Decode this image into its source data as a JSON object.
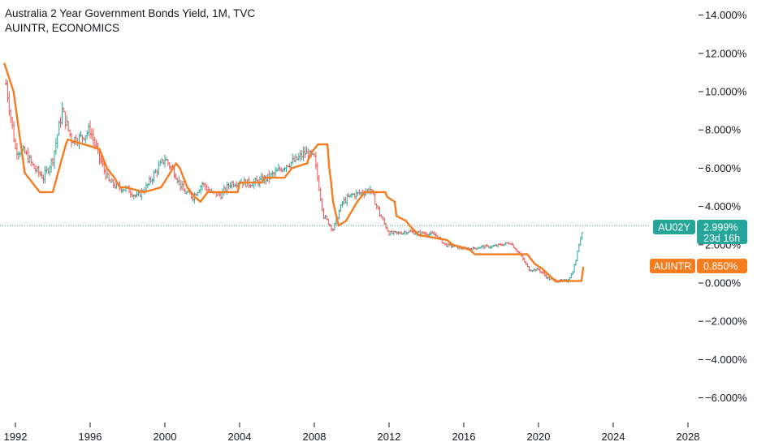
{
  "header": {
    "title": "Australia 2 Year Government Bonds Yield, 1M, TVC",
    "subtitle": "AUINTR, ECONOMICS"
  },
  "colors": {
    "up": "#26a69a",
    "down": "#ef5350",
    "rate_line": "#f57c1f",
    "au02y_badge": "#26a69a",
    "auintr_badge": "#f57c1f",
    "last_price_dotted": "#26a69a"
  },
  "badges": {
    "au02y": {
      "symbol": "AU02Y",
      "value": "2.999%",
      "countdown": "23d 16h"
    },
    "auintr": {
      "symbol": "AUINTR",
      "value": "0.850%"
    }
  },
  "chart_data": {
    "type": "line",
    "x_range": [
      1991.4,
      2028.5
    ],
    "ylim": [
      -7,
      15
    ],
    "y_ticks": [
      "14.000%",
      "12.000%",
      "10.000%",
      "8.000%",
      "6.000%",
      "4.000%",
      "2.000%",
      "0.000%",
      "−2.000%",
      "−4.000%",
      "−6.000%"
    ],
    "y_tick_values": [
      14,
      12,
      10,
      8,
      6,
      4,
      2,
      0,
      -2,
      -4,
      -6
    ],
    "x_ticks": [
      "1992",
      "1996",
      "2000",
      "2004",
      "2008",
      "2012",
      "2016",
      "2020",
      "2024",
      "2028"
    ],
    "x_tick_values": [
      1992,
      1996,
      2000,
      2004,
      2008,
      2012,
      2016,
      2020,
      2024,
      2028
    ],
    "grid": false,
    "series": [
      {
        "name": "AU02Y",
        "style": "ohlc-bars",
        "x": [
          1991.5,
          1992.0,
          1992.5,
          1993.0,
          1993.5,
          1994.0,
          1994.5,
          1995.0,
          1995.5,
          1996.0,
          1996.5,
          1997.0,
          1997.5,
          1998.0,
          1998.5,
          1999.0,
          1999.5,
          2000.0,
          2000.5,
          2001.0,
          2001.5,
          2002.0,
          2002.5,
          2003.0,
          2003.5,
          2004.0,
          2004.5,
          2005.0,
          2005.5,
          2006.0,
          2006.5,
          2007.0,
          2007.5,
          2008.0,
          2008.5,
          2009.0,
          2009.5,
          2010.0,
          2010.5,
          2011.0,
          2011.5,
          2012.0,
          2012.5,
          2013.0,
          2013.5,
          2014.0,
          2014.5,
          2015.0,
          2015.5,
          2016.0,
          2016.5,
          2017.0,
          2017.5,
          2018.0,
          2018.5,
          2019.0,
          2019.5,
          2020.0,
          2020.5,
          2021.0,
          2021.5,
          2021.8,
          2022.0,
          2022.2,
          2022.4
        ],
        "values": [
          10.4,
          7.0,
          6.8,
          6.0,
          5.5,
          6.5,
          9.0,
          7.5,
          7.6,
          8.0,
          6.5,
          5.3,
          5.0,
          4.9,
          4.5,
          5.0,
          5.8,
          6.5,
          5.8,
          4.8,
          4.5,
          5.2,
          4.7,
          4.6,
          5.2,
          5.3,
          5.2,
          5.3,
          5.5,
          5.8,
          6.2,
          6.4,
          6.8,
          6.5,
          3.5,
          2.8,
          4.2,
          4.6,
          4.7,
          4.9,
          3.6,
          2.6,
          2.6,
          2.7,
          2.6,
          2.6,
          2.5,
          2.0,
          1.9,
          1.8,
          1.8,
          1.9,
          1.9,
          2.0,
          2.1,
          1.5,
          0.7,
          0.7,
          0.25,
          0.1,
          0.1,
          0.5,
          1.2,
          2.2,
          3.0
        ]
      },
      {
        "name": "AUINTR",
        "style": "line",
        "x": [
          1991.4,
          1991.9,
          1992.5,
          1993.3,
          1994.0,
          1994.7,
          1994.8,
          1996.5,
          1996.9,
          1997.3,
          1997.6,
          1997.9,
          1998.9,
          1999.8,
          2000.6,
          2000.8,
          2001.2,
          2001.6,
          2001.9,
          2002.3,
          2002.6,
          2003.9,
          2004.0,
          2005.2,
          2005.3,
          2006.4,
          2006.8,
          2007.6,
          2007.8,
          2008.0,
          2008.2,
          2008.7,
          2008.8,
          2008.9,
          2009.0,
          2009.3,
          2009.7,
          2010.0,
          2010.3,
          2010.7,
          2011.8,
          2011.9,
          2012.3,
          2012.4,
          2012.9,
          2013.1,
          2013.6,
          2015.1,
          2015.4,
          2016.3,
          2016.6,
          2019.4,
          2019.6,
          2019.8,
          2020.2,
          2020.9,
          2022.3,
          2022.4
        ],
        "values": [
          11.5,
          10.0,
          5.75,
          4.75,
          4.75,
          7.25,
          7.5,
          7.0,
          6.0,
          5.5,
          5.0,
          5.0,
          4.75,
          5.0,
          6.25,
          6.0,
          5.0,
          4.5,
          4.25,
          4.75,
          4.75,
          4.75,
          5.25,
          5.25,
          5.5,
          5.5,
          6.0,
          6.25,
          6.75,
          7.0,
          7.25,
          7.25,
          6.0,
          5.25,
          4.25,
          3.0,
          3.25,
          3.75,
          4.25,
          4.75,
          4.75,
          4.5,
          4.25,
          3.5,
          3.25,
          3.0,
          2.5,
          2.25,
          2.0,
          1.75,
          1.5,
          1.5,
          1.25,
          1.0,
          0.75,
          0.1,
          0.1,
          0.85
        ]
      }
    ]
  }
}
